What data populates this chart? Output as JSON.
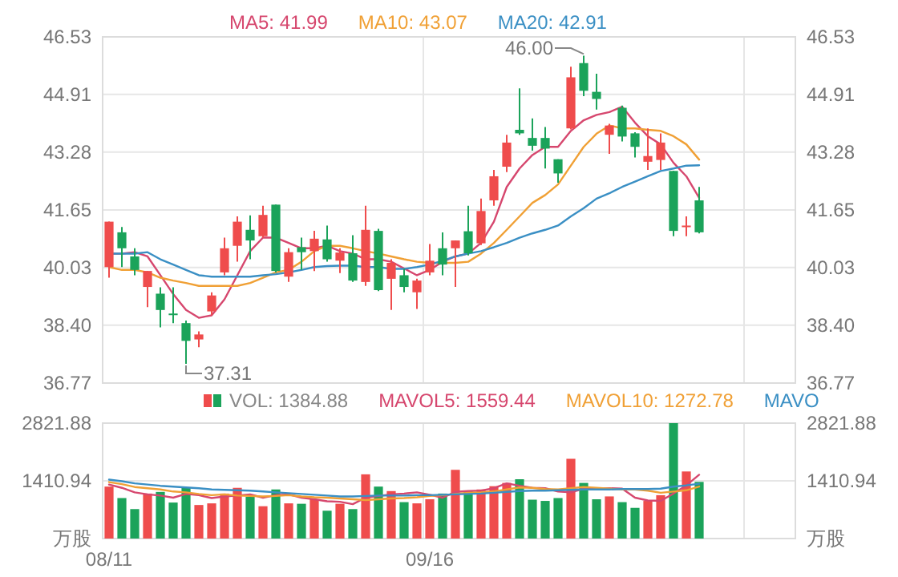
{
  "chart_data": [
    {
      "type": "candlestick",
      "categories": [
        null,
        null,
        null,
        null,
        null,
        null,
        null,
        null,
        null,
        null,
        null,
        null,
        null,
        null,
        null,
        null,
        null,
        null,
        null,
        null,
        null,
        null,
        null,
        null,
        null,
        null,
        null,
        null,
        null,
        null,
        null,
        null,
        null,
        null,
        null,
        null,
        null,
        null,
        null,
        null,
        null,
        null,
        null,
        null,
        null,
        null,
        null,
        null,
        null,
        null,
        null,
        null,
        null,
        null
      ],
      "ohlc": [
        [
          40.04,
          41.32,
          39.74,
          41.32
        ],
        [
          41.02,
          41.17,
          40.04,
          40.57
        ],
        [
          40.34,
          40.57,
          39.81,
          39.96
        ],
        [
          39.48,
          39.93,
          38.91,
          39.93
        ],
        [
          39.29,
          39.47,
          38.34,
          38.83
        ],
        [
          38.73,
          39.47,
          38.46,
          38.7
        ],
        [
          38.46,
          38.53,
          37.31,
          37.96
        ],
        [
          38.0,
          38.23,
          37.78,
          38.14
        ],
        [
          38.79,
          39.33,
          38.68,
          39.24
        ],
        [
          39.89,
          40.87,
          39.81,
          40.57
        ],
        [
          40.64,
          41.47,
          40.19,
          41.32
        ],
        [
          41.09,
          41.5,
          40.26,
          40.79
        ],
        [
          40.91,
          41.77,
          40.87,
          41.51
        ],
        [
          41.8,
          41.8,
          39.89,
          39.93
        ],
        [
          39.77,
          40.57,
          39.62,
          40.46
        ],
        [
          40.6,
          40.87,
          39.96,
          40.46
        ],
        [
          40.49,
          41.06,
          39.93,
          40.84
        ],
        [
          40.82,
          41.21,
          40.19,
          40.26
        ],
        [
          40.22,
          40.57,
          39.87,
          40.45
        ],
        [
          40.43,
          40.94,
          39.62,
          39.66
        ],
        [
          39.62,
          41.77,
          39.51,
          41.09
        ],
        [
          41.06,
          41.12,
          39.36,
          39.39
        ],
        [
          39.71,
          40.26,
          38.83,
          40.16
        ],
        [
          39.81,
          39.99,
          39.33,
          39.48
        ],
        [
          39.33,
          39.71,
          38.86,
          39.66
        ],
        [
          39.89,
          40.69,
          39.81,
          40.22
        ],
        [
          40.57,
          41.02,
          39.81,
          40.11
        ],
        [
          40.57,
          40.79,
          39.48,
          40.79
        ],
        [
          41.05,
          41.77,
          40.37,
          40.43
        ],
        [
          40.71,
          41.97,
          40.66,
          41.62
        ],
        [
          41.92,
          42.78,
          41.77,
          42.6
        ],
        [
          42.87,
          43.77,
          42.72,
          43.55
        ],
        [
          43.91,
          45.08,
          43.77,
          43.81
        ],
        [
          43.68,
          44.23,
          43.32,
          43.46
        ],
        [
          43.68,
          43.99,
          42.82,
          43.38
        ],
        [
          43.08,
          43.08,
          42.42,
          42.68
        ],
        [
          43.95,
          45.69,
          43.92,
          45.39
        ],
        [
          45.79,
          46.0,
          44.86,
          45.01
        ],
        [
          44.98,
          45.49,
          44.48,
          44.78
        ],
        [
          43.77,
          44.08,
          43.23,
          44.03
        ],
        [
          44.53,
          44.59,
          43.58,
          43.72
        ],
        [
          43.81,
          43.84,
          43.13,
          43.43
        ],
        [
          43.01,
          43.95,
          42.78,
          43.17
        ],
        [
          43.06,
          43.81,
          42.78,
          43.55
        ],
        [
          42.75,
          42.75,
          40.91,
          41.06
        ],
        [
          41.17,
          41.47,
          40.91,
          41.21
        ],
        [
          41.92,
          42.3,
          40.99,
          41.02
        ],
        null,
        null,
        null,
        null,
        null,
        null,
        null
      ],
      "colors": [
        "#ef4c4c",
        "#1ba35a",
        "#1ba35a",
        "#ef4c4c",
        "#1ba35a",
        "#1ba35a",
        "#1ba35a",
        "#ef4c4c",
        "#ef4c4c",
        "#ef4c4c",
        "#ef4c4c",
        "#1ba35a",
        "#ef4c4c",
        "#1ba35a",
        "#ef4c4c",
        "#1ba35a",
        "#ef4c4c",
        "#1ba35a",
        "#ef4c4c",
        "#1ba35a",
        "#ef4c4c",
        "#1ba35a",
        "#ef4c4c",
        "#1ba35a",
        "#ef4c4c",
        "#ef4c4c",
        "#1ba35a",
        "#ef4c4c",
        "#1ba35a",
        "#ef4c4c",
        "#ef4c4c",
        "#ef4c4c",
        "#1ba35a",
        "#1ba35a",
        "#1ba35a",
        "#1ba35a",
        "#ef4c4c",
        "#1ba35a",
        "#1ba35a",
        "#ef4c4c",
        "#1ba35a",
        "#1ba35a",
        "#ef4c4c",
        "#ef4c4c",
        "#1ba35a",
        "#ef4c4c",
        "#1ba35a",
        null,
        null,
        null,
        null,
        null,
        null,
        null
      ],
      "series": [
        {
          "name": "MA5: 41.99",
          "type": "line",
          "color": "#d6476e",
          "values": [
            40.42,
            40.42,
            40.46,
            40.34,
            39.81,
            39.28,
            38.83,
            38.61,
            38.68,
            39.13,
            39.81,
            40.49,
            40.87,
            40.87,
            40.72,
            40.57,
            40.57,
            40.64,
            40.49,
            40.42,
            40.26,
            40.26,
            40.19,
            40.0,
            39.81,
            39.96,
            40.19,
            40.34,
            40.42,
            40.72,
            41.32,
            42.3,
            42.82,
            43.2,
            43.43,
            43.43,
            43.88,
            44.18,
            44.33,
            44.41,
            44.56,
            44.11,
            43.73,
            43.5,
            42.98,
            42.6,
            41.99,
            null,
            null,
            null,
            null,
            null,
            null,
            null
          ]
        },
        {
          "name": "MA10: 43.07",
          "type": "line",
          "color": "#f0a035",
          "values": [
            40.04,
            39.96,
            39.96,
            39.89,
            39.74,
            39.66,
            39.59,
            39.51,
            39.51,
            39.51,
            39.51,
            39.59,
            39.74,
            39.89,
            39.96,
            40.19,
            40.49,
            40.64,
            40.64,
            40.57,
            40.49,
            40.42,
            40.34,
            40.26,
            40.19,
            40.16,
            40.16,
            40.16,
            40.19,
            40.42,
            40.72,
            41.09,
            41.47,
            41.85,
            42.07,
            42.37,
            42.9,
            43.43,
            43.8,
            44.03,
            43.95,
            43.95,
            43.91,
            43.88,
            43.73,
            43.5,
            43.07,
            null,
            null,
            null,
            null,
            null,
            null,
            null
          ]
        },
        {
          "name": "MA20: 42.91",
          "type": "line",
          "color": "#3a8fc4",
          "values": [
            40.42,
            40.42,
            40.42,
            40.46,
            40.26,
            40.11,
            39.96,
            39.81,
            39.77,
            39.77,
            39.77,
            39.77,
            39.81,
            39.84,
            39.89,
            39.96,
            40.04,
            40.07,
            40.08,
            40.08,
            40.04,
            40.04,
            39.99,
            39.99,
            40.04,
            40.11,
            40.22,
            40.34,
            40.42,
            40.49,
            40.6,
            40.72,
            40.87,
            40.99,
            41.09,
            41.21,
            41.47,
            41.7,
            41.97,
            42.12,
            42.3,
            42.45,
            42.6,
            42.75,
            42.82,
            42.9,
            42.91,
            null,
            null,
            null,
            null,
            null,
            null,
            null
          ]
        }
      ],
      "ylim": [
        36.77,
        46.53
      ],
      "yticks": [
        36.77,
        {
          "value": 38.4,
          "label": "38.40"
        },
        40.03,
        41.65,
        43.28,
        44.91,
        46.53
      ],
      "y2lim": [
        36.77,
        46.53
      ],
      "y2ticks": [
        36.77,
        {
          "value": 38.4,
          "label": "38.40"
        },
        40.03,
        41.65,
        43.28,
        44.91,
        46.53
      ],
      "annotations": [
        "46.00",
        "37.31"
      ],
      "grid": true,
      "legend": "top",
      "tick_labels": "y"
    },
    {
      "type": "bar",
      "categories": [
        "08/11",
        null,
        null,
        null,
        null,
        null,
        null,
        null,
        null,
        null,
        null,
        null,
        null,
        null,
        null,
        null,
        null,
        null,
        null,
        null,
        null,
        null,
        null,
        null,
        null,
        "09/16",
        null,
        null,
        null,
        null,
        null,
        null,
        null,
        null,
        null,
        null,
        null,
        null,
        null,
        null,
        null,
        null,
        null,
        null,
        null,
        null,
        null,
        null,
        null,
        null,
        null,
        null,
        null,
        null
      ],
      "series": [
        {
          "name": "VOL: 1384.88",
          "type": "bar",
          "values": [
            1270,
            990,
            720,
            1100,
            1140,
            880,
            1240,
            820,
            860,
            1100,
            1240,
            1020,
            790,
            1200,
            860,
            850,
            960,
            680,
            850,
            720,
            1570,
            1270,
            1160,
            890,
            860,
            960,
            1100,
            1680,
            1170,
            1200,
            1280,
            1360,
            1450,
            950,
            920,
            990,
            1950,
            1360,
            960,
            1030,
            890,
            750,
            920,
            1060,
            2821.88,
            1640,
            1384.88,
            null,
            null,
            null,
            null,
            null,
            null,
            null
          ],
          "colors": [
            "#ef4c4c",
            "#1ba35a",
            "#1ba35a",
            "#ef4c4c",
            "#1ba35a",
            "#1ba35a",
            "#1ba35a",
            "#ef4c4c",
            "#ef4c4c",
            "#ef4c4c",
            "#ef4c4c",
            "#1ba35a",
            "#ef4c4c",
            "#1ba35a",
            "#ef4c4c",
            "#1ba35a",
            "#ef4c4c",
            "#1ba35a",
            "#ef4c4c",
            "#1ba35a",
            "#ef4c4c",
            "#1ba35a",
            "#ef4c4c",
            "#1ba35a",
            "#ef4c4c",
            "#ef4c4c",
            "#1ba35a",
            "#ef4c4c",
            "#1ba35a",
            "#ef4c4c",
            "#ef4c4c",
            "#ef4c4c",
            "#1ba35a",
            "#1ba35a",
            "#1ba35a",
            "#1ba35a",
            "#ef4c4c",
            "#1ba35a",
            "#1ba35a",
            "#ef4c4c",
            "#1ba35a",
            "#1ba35a",
            "#ef4c4c",
            "#ef4c4c",
            "#1ba35a",
            "#ef4c4c",
            "#1ba35a",
            null,
            null,
            null,
            null,
            null,
            null,
            null
          ]
        },
        {
          "name": "MAVOL5: 1559.44",
          "type": "line",
          "color": "#d6476e",
          "values": [
            1320,
            1240,
            1130,
            1080,
            1050,
            1000,
            1090,
            1060,
            990,
            1030,
            1050,
            1080,
            1000,
            1060,
            1080,
            1000,
            960,
            910,
            900,
            840,
            1000,
            1040,
            1080,
            1100,
            1130,
            1070,
            1000,
            1140,
            1160,
            1170,
            1230,
            1350,
            1290,
            1240,
            1230,
            1150,
            1130,
            1220,
            1220,
            1230,
            1220,
            1000,
            930,
            920,
            1100,
            1300,
            1559.44,
            null,
            null,
            null,
            null,
            null,
            null,
            null
          ]
        },
        {
          "name": "MAVOL10: 1272.78",
          "type": "line",
          "color": "#f0a035",
          "values": [
            1380,
            1330,
            1260,
            1230,
            1200,
            1150,
            1130,
            1090,
            1060,
            1080,
            1050,
            1040,
            1030,
            1040,
            1060,
            1030,
            1010,
            1000,
            980,
            960,
            940,
            960,
            980,
            990,
            1010,
            1040,
            1060,
            1090,
            1120,
            1130,
            1150,
            1200,
            1250,
            1240,
            1210,
            1200,
            1230,
            1260,
            1240,
            1220,
            1200,
            1200,
            1170,
            1120,
            1150,
            1180,
            1272.78,
            null,
            null,
            null,
            null,
            null,
            null,
            null
          ]
        },
        {
          "name": "MAVO",
          "type": "line",
          "color": "#3a8fc4",
          "values": [
            1440,
            1400,
            1350,
            1320,
            1290,
            1270,
            1250,
            1230,
            1200,
            1190,
            1180,
            1170,
            1150,
            1130,
            1110,
            1090,
            1070,
            1050,
            1030,
            1030,
            1040,
            1050,
            1050,
            1050,
            1060,
            1060,
            1070,
            1080,
            1090,
            1100,
            1120,
            1140,
            1160,
            1170,
            1170,
            1180,
            1190,
            1200,
            1200,
            1200,
            1210,
            1210,
            1210,
            1220,
            1270,
            1300,
            1340,
            null,
            null,
            null,
            null,
            null,
            null,
            null
          ]
        }
      ],
      "ylim": [
        0,
        2821.88
      ],
      "yticks": [
        {
          "value": 0,
          "label": "万股"
        },
        1410.94,
        2821.88
      ],
      "y2lim": [
        0,
        2821.88
      ],
      "y2ticks": [
        {
          "value": 0,
          "label": "万股"
        },
        1410.94,
        2821.88
      ],
      "grid": true,
      "legend": "top"
    }
  ]
}
